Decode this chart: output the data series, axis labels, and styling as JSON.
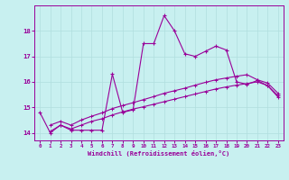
{
  "xlabel": "Windchill (Refroidissement éolien,°C)",
  "background_color": "#c8f0f0",
  "grid_color": "#b0dede",
  "line_color": "#990099",
  "xlim": [
    -0.5,
    23.5
  ],
  "ylim": [
    13.7,
    19.0
  ],
  "x_ticks": [
    0,
    1,
    2,
    3,
    4,
    5,
    6,
    7,
    8,
    9,
    10,
    11,
    12,
    13,
    14,
    15,
    16,
    17,
    18,
    19,
    20,
    21,
    22,
    23
  ],
  "y_ticks": [
    14,
    15,
    16,
    17,
    18
  ],
  "main_line_x": [
    0,
    1,
    2,
    3,
    4,
    5,
    6,
    7,
    8,
    9,
    10,
    11,
    12,
    13,
    14,
    15,
    16,
    17,
    18,
    19,
    20,
    21,
    22,
    23
  ],
  "main_line_y": [
    14.8,
    14.0,
    14.3,
    14.1,
    14.1,
    14.1,
    14.1,
    16.3,
    14.8,
    14.9,
    17.5,
    17.5,
    18.6,
    18.0,
    17.1,
    17.0,
    17.2,
    17.4,
    17.25,
    16.0,
    15.9,
    16.05,
    15.85,
    15.45
  ],
  "lower_line_x": [
    1,
    2,
    3,
    4,
    5,
    6,
    7,
    8,
    9,
    10,
    11,
    12,
    13,
    14,
    15,
    16,
    17,
    18,
    19,
    20,
    21,
    22,
    23
  ],
  "lower_line_y": [
    14.05,
    14.3,
    14.15,
    14.3,
    14.45,
    14.55,
    14.7,
    14.82,
    14.93,
    15.02,
    15.12,
    15.22,
    15.32,
    15.42,
    15.52,
    15.62,
    15.72,
    15.8,
    15.87,
    15.93,
    16.0,
    15.85,
    15.4
  ],
  "upper_line_x": [
    1,
    2,
    3,
    4,
    5,
    6,
    7,
    8,
    9,
    10,
    11,
    12,
    13,
    14,
    15,
    16,
    17,
    18,
    19,
    20,
    21,
    22,
    23
  ],
  "upper_line_y": [
    14.3,
    14.45,
    14.3,
    14.5,
    14.65,
    14.78,
    14.95,
    15.07,
    15.18,
    15.3,
    15.42,
    15.55,
    15.65,
    15.75,
    15.87,
    15.98,
    16.08,
    16.15,
    16.22,
    16.28,
    16.08,
    15.95,
    15.55
  ]
}
